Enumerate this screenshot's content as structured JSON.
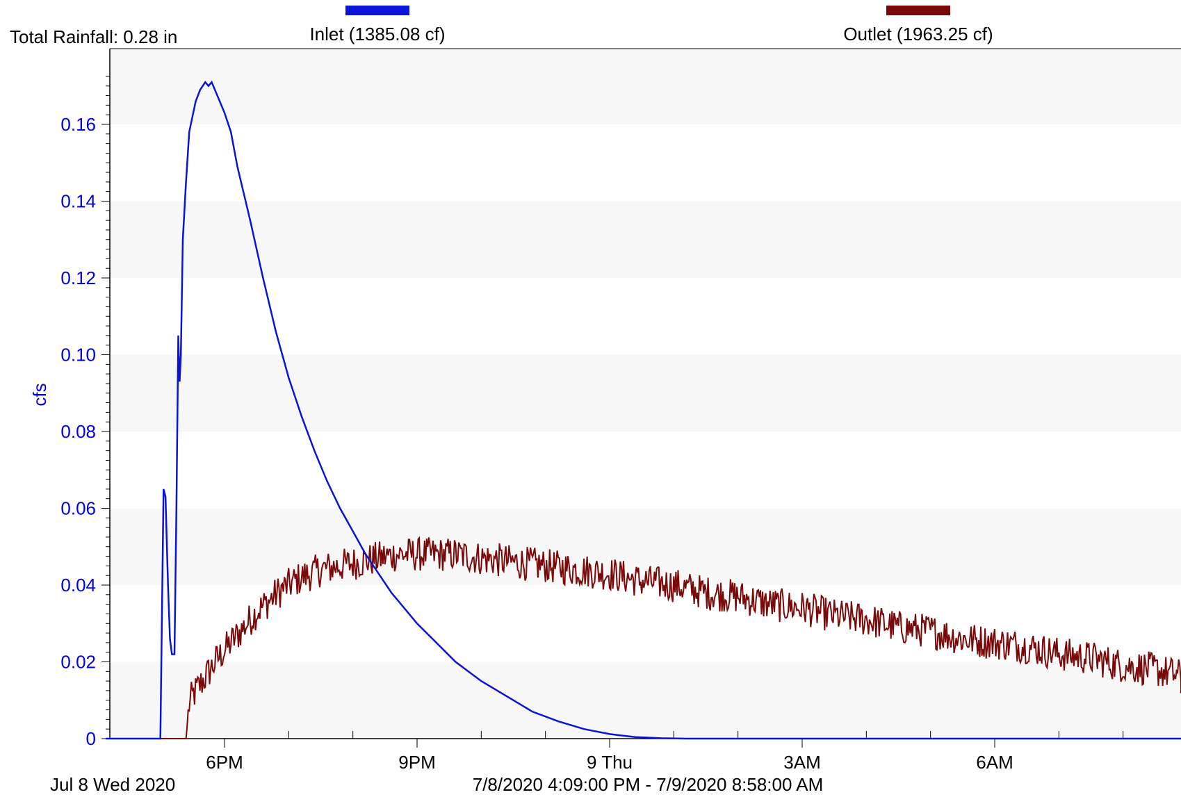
{
  "header": {
    "total_rainfall": "Total Rainfall: 0.28 in"
  },
  "footer": {
    "start_label": "Jul 8 Wed 2020",
    "range_label": "7/8/2020 4:09:00 PM - 7/9/2020 8:58:00 AM"
  },
  "colors": {
    "inlet": "#0a14d6",
    "outlet": "#7a0a0a",
    "axis_labels": "#0000ee",
    "band": "#f7f7f7"
  },
  "chart_data": {
    "type": "line",
    "title": "",
    "ylabel": "cfs",
    "xlabel": "",
    "ylim": [
      0,
      0.175
    ],
    "xlim_hours": [
      16.15,
      32.967
    ],
    "y_ticks": [
      "0",
      "0.02",
      "0.04",
      "0.06",
      "0.08",
      "0.10",
      "0.12",
      "0.14",
      "0.16"
    ],
    "y_tick_values": [
      0,
      0.02,
      0.04,
      0.06,
      0.08,
      0.1,
      0.12,
      0.14,
      0.16
    ],
    "x_tick_labels": [
      "6PM",
      "9PM",
      "9 Thu",
      "3AM",
      "6AM"
    ],
    "x_tick_hours": [
      18,
      21,
      24,
      27,
      30
    ],
    "legend": [
      {
        "name": "Inlet (1385.08 cf)",
        "color": "#0a14d6"
      },
      {
        "name": "Outlet (1963.25 cf)",
        "color": "#7a0a0a"
      }
    ],
    "series": [
      {
        "name": "Inlet (1385.08 cf)",
        "x_hours": [
          16.15,
          16.9,
          17.0,
          17.05,
          17.08,
          17.12,
          17.15,
          17.18,
          17.22,
          17.25,
          17.28,
          17.3,
          17.32,
          17.35,
          17.4,
          17.45,
          17.55,
          17.62,
          17.7,
          17.75,
          17.8,
          17.85,
          17.9,
          18.0,
          18.1,
          18.2,
          18.4,
          18.6,
          18.8,
          19.0,
          19.2,
          19.4,
          19.6,
          19.8,
          20.0,
          20.2,
          20.4,
          20.6,
          20.8,
          21.0,
          21.3,
          21.6,
          22.0,
          22.4,
          22.8,
          23.2,
          23.6,
          24.0,
          24.4,
          24.8,
          25.2,
          32.967
        ],
        "values": [
          0,
          0,
          0,
          0.065,
          0.063,
          0.04,
          0.026,
          0.022,
          0.022,
          0.06,
          0.105,
          0.093,
          0.1,
          0.13,
          0.145,
          0.158,
          0.166,
          0.169,
          0.171,
          0.17,
          0.171,
          0.169,
          0.167,
          0.163,
          0.158,
          0.149,
          0.135,
          0.12,
          0.106,
          0.094,
          0.084,
          0.075,
          0.067,
          0.06,
          0.054,
          0.048,
          0.043,
          0.038,
          0.034,
          0.03,
          0.025,
          0.02,
          0.015,
          0.011,
          0.007,
          0.0045,
          0.0025,
          0.0012,
          0.0004,
          0.0001,
          0,
          0
        ]
      },
      {
        "name": "Outlet (1963.25 cf)",
        "x_hours": [
          16.15,
          17.0,
          17.4,
          17.45,
          17.5,
          17.7,
          17.9,
          18.1,
          18.3,
          18.5,
          18.7,
          18.9,
          19.2,
          19.5,
          19.8,
          20.1,
          20.4,
          20.7,
          21.0,
          21.3,
          21.6,
          22.0,
          22.5,
          23.0,
          23.5,
          24.0,
          24.5,
          25.0,
          25.5,
          26.0,
          26.5,
          27.0,
          27.5,
          28.0,
          28.5,
          29.0,
          29.5,
          30.0,
          30.5,
          31.0,
          31.5,
          32.0,
          32.5,
          32.967
        ],
        "values": [
          0,
          0,
          0,
          0.009,
          0.011,
          0.016,
          0.021,
          0.025,
          0.029,
          0.033,
          0.036,
          0.039,
          0.042,
          0.044,
          0.045,
          0.046,
          0.047,
          0.048,
          0.048,
          0.048,
          0.048,
          0.047,
          0.046,
          0.045,
          0.044,
          0.043,
          0.041,
          0.04,
          0.038,
          0.037,
          0.035,
          0.034,
          0.032,
          0.031,
          0.029,
          0.028,
          0.026,
          0.025,
          0.024,
          0.022,
          0.021,
          0.019,
          0.018,
          0.016
        ],
        "noise_amplitude": 0.0045
      }
    ]
  }
}
